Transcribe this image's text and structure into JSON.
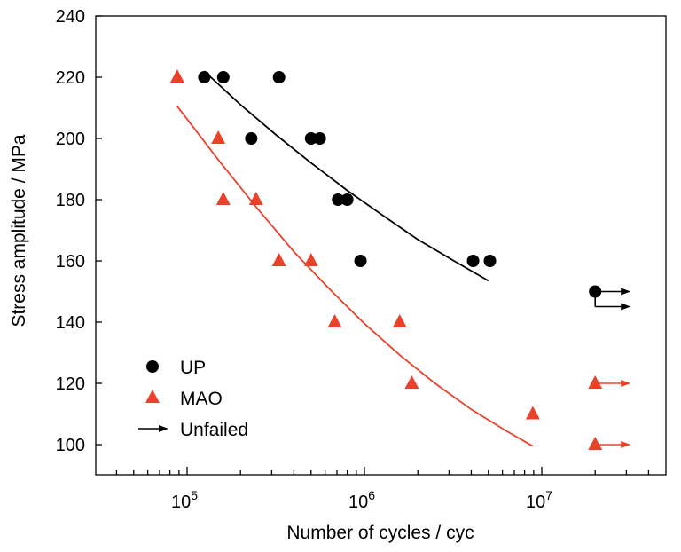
{
  "chart_data": {
    "type": "scatter",
    "title": "",
    "xlabel": "Number of cycles / cyc",
    "ylabel": "Stress amplitude / MPa",
    "xscale": "log",
    "xlim": [
      30000,
      50000000
    ],
    "ylim": [
      90,
      240
    ],
    "x_ticks": [
      {
        "value": 100000,
        "base": "10",
        "exp": "5"
      },
      {
        "value": 1000000,
        "base": "10",
        "exp": "6"
      },
      {
        "value": 10000000,
        "base": "10",
        "exp": "7"
      }
    ],
    "y_ticks": [
      {
        "value": 100,
        "label": "100"
      },
      {
        "value": 120,
        "label": "120"
      },
      {
        "value": 140,
        "label": "140"
      },
      {
        "value": 160,
        "label": "160"
      },
      {
        "value": 180,
        "label": "180"
      },
      {
        "value": 200,
        "label": "200"
      },
      {
        "value": 220,
        "label": "220"
      },
      {
        "value": 240,
        "label": "240"
      }
    ],
    "grid": false,
    "legend_position": "bottom-left",
    "series": [
      {
        "name": "UP",
        "marker": "circle",
        "color": "#000000",
        "points": [
          {
            "x": 125000,
            "y": 220
          },
          {
            "x": 160000,
            "y": 220
          },
          {
            "x": 330000,
            "y": 220
          },
          {
            "x": 230000,
            "y": 200
          },
          {
            "x": 500000,
            "y": 200
          },
          {
            "x": 560000,
            "y": 200
          },
          {
            "x": 710000,
            "y": 180
          },
          {
            "x": 800000,
            "y": 180
          },
          {
            "x": 950000,
            "y": 160
          },
          {
            "x": 4100000,
            "y": 160
          },
          {
            "x": 5100000,
            "y": 160
          }
        ],
        "fit": [
          {
            "x": 125000,
            "y": 222
          },
          {
            "x": 200000,
            "y": 211
          },
          {
            "x": 320000,
            "y": 201
          },
          {
            "x": 500000,
            "y": 192
          },
          {
            "x": 800000,
            "y": 183
          },
          {
            "x": 1260000,
            "y": 175
          },
          {
            "x": 2000000,
            "y": 167
          },
          {
            "x": 3200000,
            "y": 160
          },
          {
            "x": 5000000,
            "y": 153.5
          }
        ],
        "unfailed": [
          {
            "x": 20000000,
            "y": 150
          }
        ]
      },
      {
        "name": "MAO",
        "marker": "triangle",
        "color": "#e8432a",
        "points": [
          {
            "x": 88000,
            "y": 220
          },
          {
            "x": 150000,
            "y": 200
          },
          {
            "x": 160000,
            "y": 180
          },
          {
            "x": 245000,
            "y": 180
          },
          {
            "x": 330000,
            "y": 160
          },
          {
            "x": 500000,
            "y": 160
          },
          {
            "x": 680000,
            "y": 140
          },
          {
            "x": 1580000,
            "y": 140
          },
          {
            "x": 1850000,
            "y": 120
          },
          {
            "x": 8900000,
            "y": 110
          }
        ],
        "fit": [
          {
            "x": 88000,
            "y": 210.5
          },
          {
            "x": 150000,
            "y": 193
          },
          {
            "x": 250000,
            "y": 177
          },
          {
            "x": 400000,
            "y": 163
          },
          {
            "x": 630000,
            "y": 151
          },
          {
            "x": 1000000,
            "y": 139.5
          },
          {
            "x": 1600000,
            "y": 129
          },
          {
            "x": 2500000,
            "y": 120
          },
          {
            "x": 4000000,
            "y": 111.5
          },
          {
            "x": 6300000,
            "y": 104.5
          },
          {
            "x": 8900000,
            "y": 99.5
          }
        ],
        "unfailed": [
          {
            "x": 20000000,
            "y": 120
          },
          {
            "x": 20000000,
            "y": 100
          }
        ]
      }
    ],
    "legend": [
      {
        "label": "UP",
        "symbol": "circle",
        "color": "#000000"
      },
      {
        "label": "MAO",
        "symbol": "triangle",
        "color": "#e8432a"
      },
      {
        "label": "Unfailed",
        "symbol": "arrow",
        "color": "#000000"
      }
    ]
  }
}
